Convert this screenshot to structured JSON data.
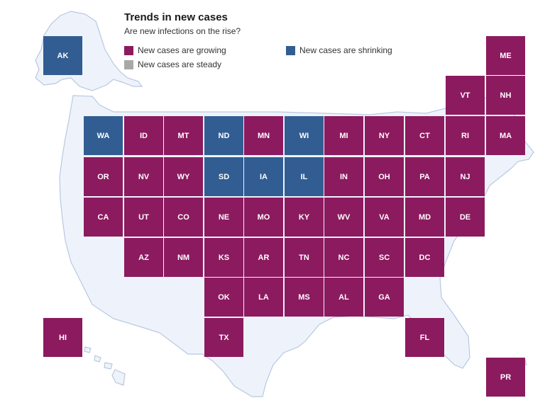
{
  "title": "Trends in new cases",
  "subtitle": "Are new infections on the rise?",
  "legend": [
    {
      "label": "New cases are growing",
      "color": "#8c1a5f",
      "key": "growing"
    },
    {
      "label": "New cases are shrinking",
      "color": "#325d92",
      "key": "shrinking"
    },
    {
      "label": "New cases are steady",
      "color": "#a8a8a8",
      "key": "steady"
    }
  ],
  "colors": {
    "growing": "#8c1a5f",
    "shrinking": "#325d92",
    "steady": "#a8a8a8",
    "land": "#eef3fb"
  },
  "states": [
    {
      "code": "AK",
      "status": "shrinking"
    },
    {
      "code": "ME",
      "status": "growing"
    },
    {
      "code": "VT",
      "status": "growing"
    },
    {
      "code": "NH",
      "status": "growing"
    },
    {
      "code": "WA",
      "status": "shrinking"
    },
    {
      "code": "ID",
      "status": "growing"
    },
    {
      "code": "MT",
      "status": "growing"
    },
    {
      "code": "ND",
      "status": "shrinking"
    },
    {
      "code": "MN",
      "status": "growing"
    },
    {
      "code": "WI",
      "status": "shrinking"
    },
    {
      "code": "MI",
      "status": "growing"
    },
    {
      "code": "NY",
      "status": "growing"
    },
    {
      "code": "CT",
      "status": "growing"
    },
    {
      "code": "RI",
      "status": "growing"
    },
    {
      "code": "MA",
      "status": "growing"
    },
    {
      "code": "OR",
      "status": "growing"
    },
    {
      "code": "NV",
      "status": "growing"
    },
    {
      "code": "WY",
      "status": "growing"
    },
    {
      "code": "SD",
      "status": "shrinking"
    },
    {
      "code": "IA",
      "status": "shrinking"
    },
    {
      "code": "IL",
      "status": "shrinking"
    },
    {
      "code": "IN",
      "status": "growing"
    },
    {
      "code": "OH",
      "status": "growing"
    },
    {
      "code": "PA",
      "status": "growing"
    },
    {
      "code": "NJ",
      "status": "growing"
    },
    {
      "code": "CA",
      "status": "growing"
    },
    {
      "code": "UT",
      "status": "growing"
    },
    {
      "code": "CO",
      "status": "growing"
    },
    {
      "code": "NE",
      "status": "growing"
    },
    {
      "code": "MO",
      "status": "growing"
    },
    {
      "code": "KY",
      "status": "growing"
    },
    {
      "code": "WV",
      "status": "growing"
    },
    {
      "code": "VA",
      "status": "growing"
    },
    {
      "code": "MD",
      "status": "growing"
    },
    {
      "code": "DE",
      "status": "growing"
    },
    {
      "code": "AZ",
      "status": "growing"
    },
    {
      "code": "NM",
      "status": "growing"
    },
    {
      "code": "KS",
      "status": "growing"
    },
    {
      "code": "AR",
      "status": "growing"
    },
    {
      "code": "TN",
      "status": "growing"
    },
    {
      "code": "NC",
      "status": "growing"
    },
    {
      "code": "SC",
      "status": "growing"
    },
    {
      "code": "DC",
      "status": "growing"
    },
    {
      "code": "OK",
      "status": "growing"
    },
    {
      "code": "LA",
      "status": "growing"
    },
    {
      "code": "MS",
      "status": "growing"
    },
    {
      "code": "AL",
      "status": "growing"
    },
    {
      "code": "GA",
      "status": "growing"
    },
    {
      "code": "HI",
      "status": "growing"
    },
    {
      "code": "TX",
      "status": "growing"
    },
    {
      "code": "FL",
      "status": "growing"
    },
    {
      "code": "PR",
      "status": "growing"
    }
  ]
}
